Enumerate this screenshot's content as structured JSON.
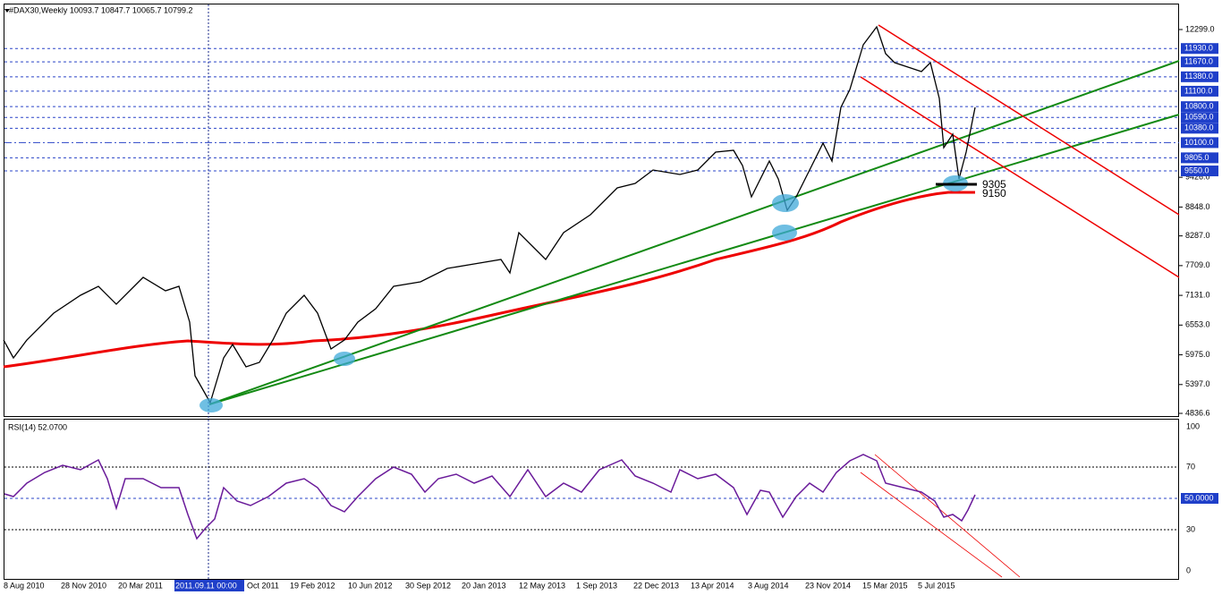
{
  "header": {
    "title": "#DAX30,Weekly  10093.7 10847.7 10065.7 10799.2"
  },
  "price_axis": {
    "labels": [
      "12299.0",
      "9426.0",
      "8848.0",
      "8287.0",
      "7709.0",
      "7131.0",
      "6553.0",
      "5975.0",
      "5397.0",
      "4836.6"
    ],
    "level_labels": [
      "11930.0",
      "11670.0",
      "11380.0",
      "11100.0",
      "10800.0",
      "10590.0",
      "10380.0",
      "10100.0",
      "9805.0",
      "9550.0"
    ]
  },
  "annotations": [
    "9305",
    "9150"
  ],
  "rsi": {
    "title": "RSI(14) 52.0700",
    "axis_labels": [
      "100",
      "70",
      "30",
      "0"
    ],
    "level_label": "50.0000"
  },
  "time_axis": {
    "labels": [
      "8 Aug 2010",
      "28 Nov 2010",
      "20 Mar 2011",
      "2011.09.11 00:00",
      "Oct 2011",
      "19 Feb 2012",
      "10 Jun 2012",
      "30 Sep 2012",
      "20 Jan 2013",
      "12 May 2013",
      "1 Sep 2013",
      "22 Dec 2013",
      "13 Apr 2014",
      "3 Aug 2014",
      "23 Nov 2014",
      "15 Mar 2015",
      "5 Jul 2015"
    ]
  }
}
